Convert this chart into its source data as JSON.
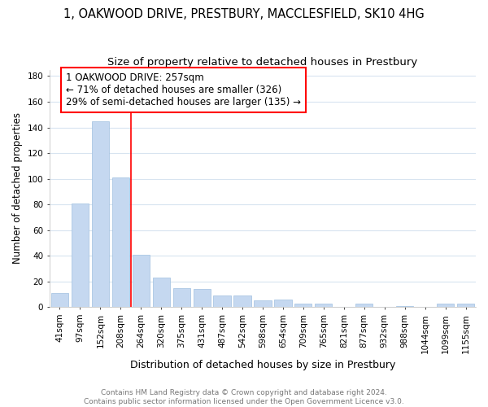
{
  "title1": "1, OAKWOOD DRIVE, PRESTBURY, MACCLESFIELD, SK10 4HG",
  "title2": "Size of property relative to detached houses in Prestbury",
  "xlabel": "Distribution of detached houses by size in Prestbury",
  "ylabel": "Number of detached properties",
  "categories": [
    "41sqm",
    "97sqm",
    "152sqm",
    "208sqm",
    "264sqm",
    "320sqm",
    "375sqm",
    "431sqm",
    "487sqm",
    "542sqm",
    "598sqm",
    "654sqm",
    "709sqm",
    "765sqm",
    "821sqm",
    "877sqm",
    "932sqm",
    "988sqm",
    "1044sqm",
    "1099sqm",
    "1155sqm"
  ],
  "values": [
    11,
    81,
    145,
    101,
    41,
    23,
    15,
    14,
    9,
    9,
    5,
    6,
    3,
    3,
    0,
    3,
    0,
    1,
    0,
    3,
    3
  ],
  "bar_color": "#c5d8f0",
  "bar_edge_color": "#9fbfe0",
  "annotation_text_line1": "1 OAKWOOD DRIVE: 257sqm",
  "annotation_text_line2": "← 71% of detached houses are smaller (326)",
  "annotation_text_line3": "29% of semi-detached houses are larger (135) →",
  "annotation_box_color": "white",
  "annotation_box_edgecolor": "red",
  "vline_color": "red",
  "vline_x_index": 4,
  "ylim": [
    0,
    185
  ],
  "yticks": [
    0,
    20,
    40,
    60,
    80,
    100,
    120,
    140,
    160,
    180
  ],
  "footer_line1": "Contains HM Land Registry data © Crown copyright and database right 2024.",
  "footer_line2": "Contains public sector information licensed under the Open Government Licence v3.0.",
  "background_color": "#ffffff",
  "grid_color": "#d8e4f0",
  "title1_fontsize": 10.5,
  "title2_fontsize": 9.5,
  "xlabel_fontsize": 9,
  "ylabel_fontsize": 8.5,
  "tick_fontsize": 7.5,
  "footer_fontsize": 6.5,
  "annotation_fontsize": 8.5
}
